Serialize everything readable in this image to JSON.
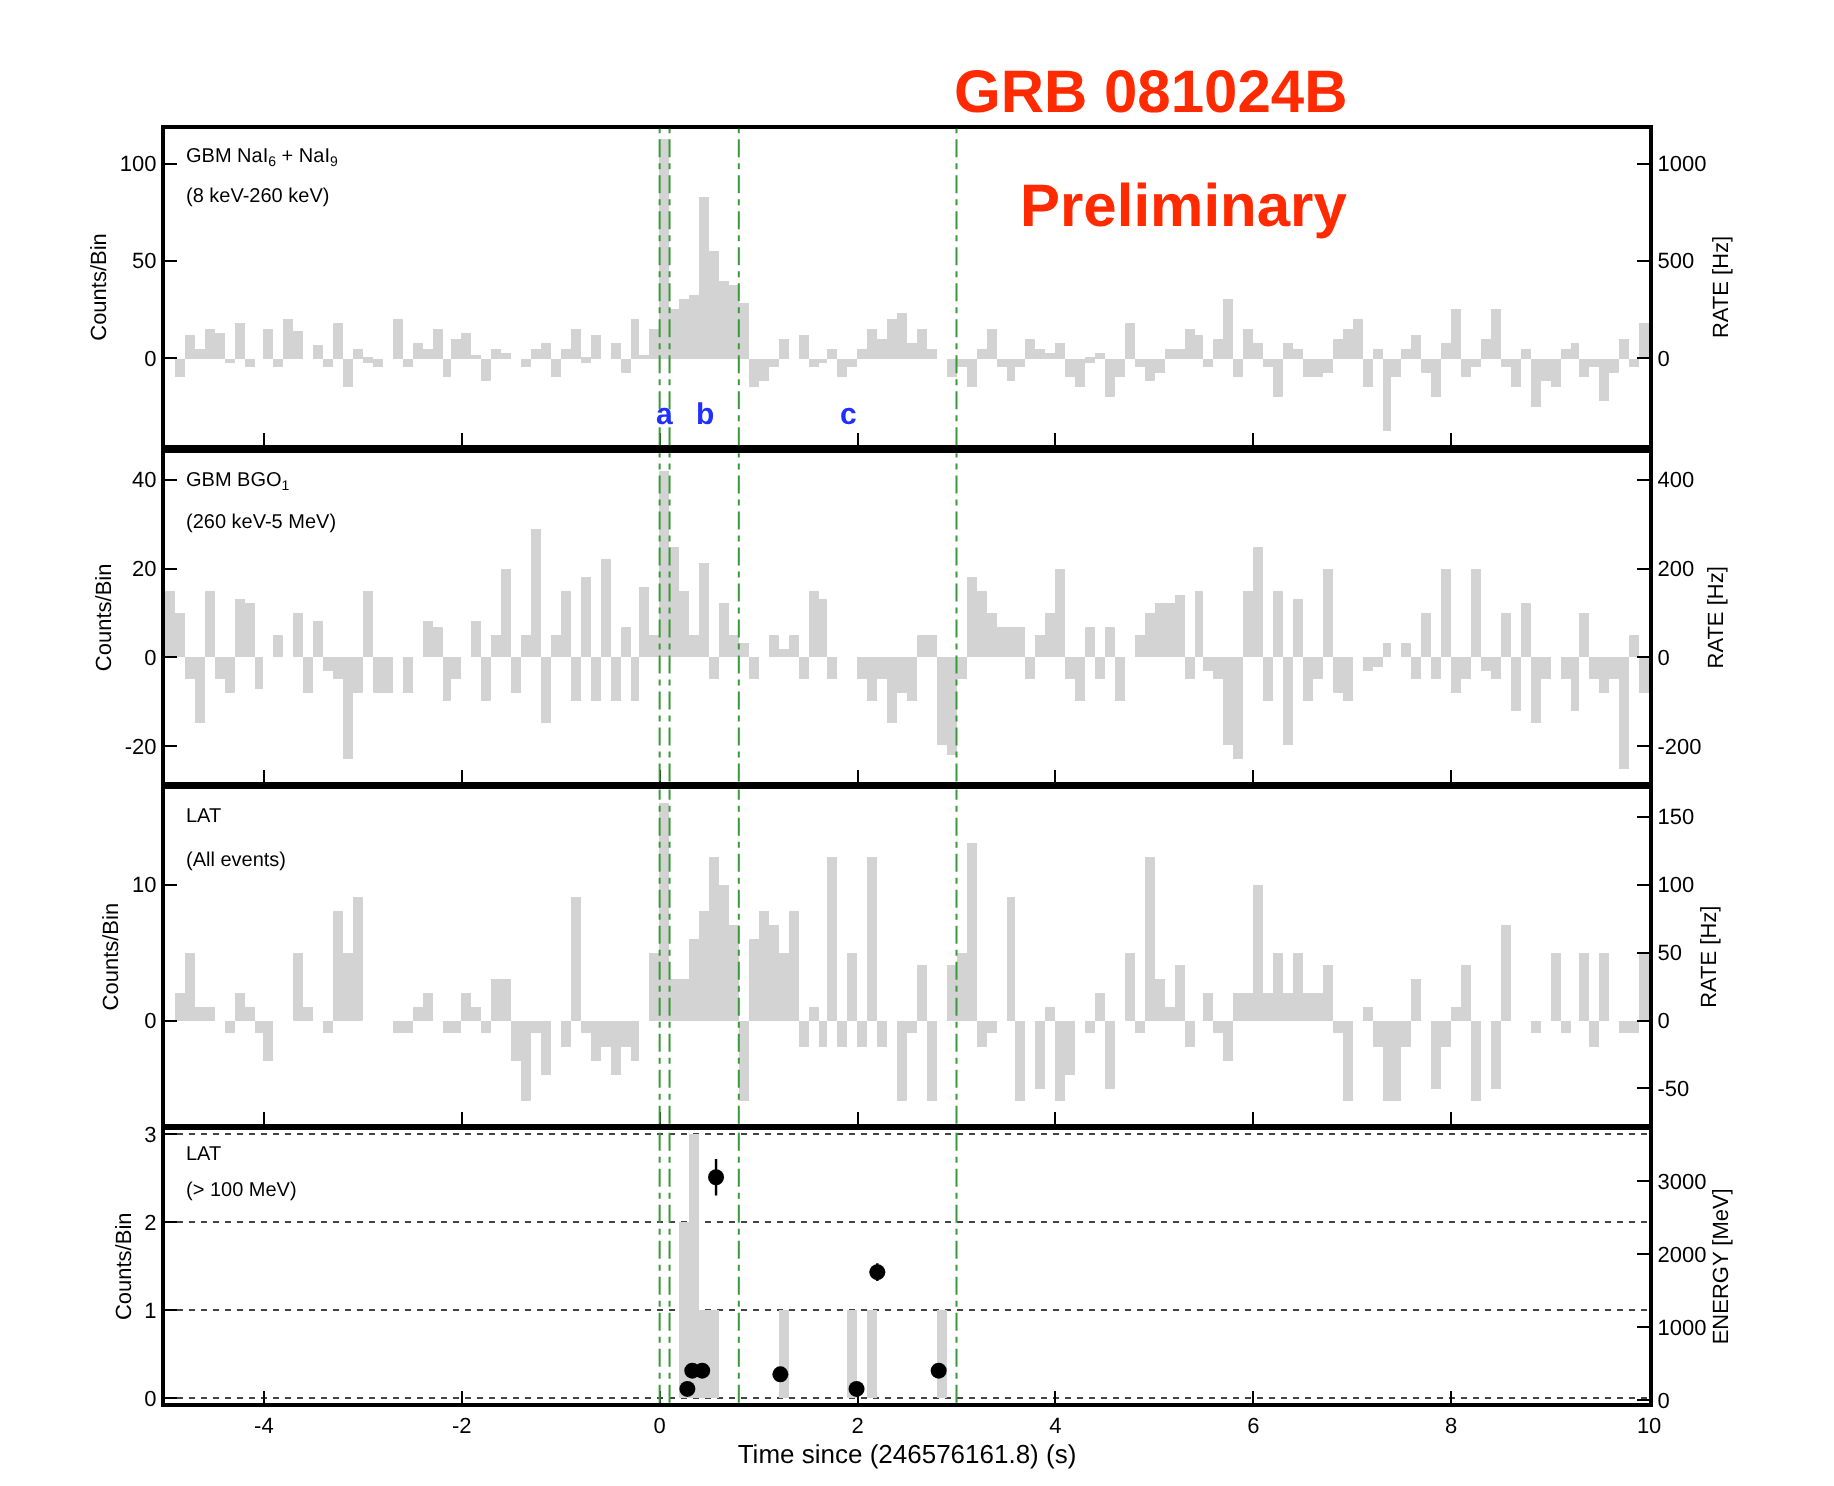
{
  "chart_data": [
    {
      "type": "histogram",
      "title": "GRB 081024B",
      "subtitle": "Preliminary",
      "ylabel": "Counts/Bin",
      "y2label": "RATE [Hz]",
      "color": "#d3d3d3",
      "annotations": [
        "GBM NaI$_{6}$ + NaI$_{9}$",
        "(8 keV-260 keV)",
        "a",
        "b",
        "c"
      ],
      "bins": [
        -5,
        -4.9,
        -4.8,
        -4.7,
        -4.6,
        -4.5,
        -4.4,
        -4.3,
        -4.2,
        -4.1,
        -4,
        -3.9,
        -3.8,
        -3.7,
        -3.6,
        -3.5,
        -3.4,
        -3.3,
        -3.2,
        -3.1,
        -3,
        -2.9,
        -2.8,
        -2.7,
        -2.6,
        -2.5,
        -2.4,
        -2.3,
        -2.2,
        -2.1,
        -2,
        -1.9,
        -1.8,
        -1.7,
        -1.6,
        -1.5,
        -1.4,
        -1.3,
        -1.2,
        -1.1,
        -1,
        -0.9,
        -0.8,
        -0.7,
        -0.6,
        -0.5,
        -0.4,
        -0.3,
        -0.2,
        -0.1,
        0,
        0.1,
        0.2,
        0.3,
        0.4,
        0.5,
        0.6,
        0.7,
        0.8,
        0.9,
        1,
        1.1,
        1.2,
        1.3,
        1.4,
        1.5,
        1.6,
        1.7,
        1.8,
        1.9,
        2,
        2.1,
        2.2,
        2.3,
        2.4,
        2.5,
        2.6,
        2.7,
        2.8,
        2.9,
        3,
        3.1,
        3.2,
        3.3,
        3.4,
        3.5,
        3.6,
        3.7,
        3.8,
        3.9,
        4,
        4.1,
        4.2,
        4.3,
        4.4,
        4.5,
        4.6,
        4.7,
        4.8,
        4.9,
        5,
        5.1,
        5.2,
        5.3,
        5.4,
        5.5,
        5.6,
        5.7,
        5.8,
        5.9,
        6,
        6.1,
        6.2,
        6.3,
        6.4,
        6.5,
        6.6,
        6.7,
        6.8,
        6.9,
        7,
        7.1,
        7.2,
        7.3,
        7.4,
        7.5,
        7.6,
        7.7,
        7.8,
        7.9,
        8,
        8.1,
        8.2,
        8.3,
        8.4,
        8.5,
        8.6,
        8.7,
        8.8,
        8.9,
        9,
        9.1,
        9.2,
        9.3,
        9.4,
        9.5,
        9.6,
        9.7,
        9.8,
        9.9,
        10
      ],
      "values": [
        0,
        -10,
        12,
        5,
        15,
        13,
        -3,
        18,
        -5,
        0,
        15,
        -5,
        20,
        14,
        0,
        7,
        -5,
        18,
        -15,
        5,
        -2,
        -5,
        0,
        20,
        -5,
        8,
        5,
        15,
        -10,
        10,
        13,
        2,
        -12,
        5,
        3,
        0,
        -5,
        5,
        8,
        -10,
        5,
        15,
        -2,
        12,
        0,
        8,
        -8,
        20,
        2,
        15,
        113,
        25,
        30,
        33,
        83,
        55,
        40,
        38,
        28,
        -15,
        -12,
        -5,
        10,
        0,
        12,
        -5,
        -3,
        5,
        -10,
        -5,
        5,
        15,
        10,
        20,
        23,
        8,
        15,
        5,
        0,
        -10,
        -5,
        -15,
        5,
        15,
        -5,
        -12,
        -5,
        10,
        5,
        3,
        8,
        -10,
        -15,
        -2,
        3,
        -20,
        -10,
        18,
        -5,
        -12,
        -8,
        5,
        5,
        15,
        12,
        -5,
        10,
        30,
        -10,
        15,
        8,
        -5,
        -20,
        8,
        5,
        -10,
        -10,
        -8,
        10,
        15,
        20,
        -15,
        5,
        -37,
        -10,
        5,
        12,
        -8,
        -20,
        8,
        25,
        -10,
        -5,
        10,
        25,
        -5,
        -15,
        5,
        -25,
        -12,
        -15,
        5,
        8,
        -10,
        -5,
        -22,
        -8,
        10,
        -5,
        18
      ],
      "xlim": [
        -5,
        10
      ],
      "xticks": [
        -4,
        -2,
        0,
        2,
        4,
        6,
        8,
        10
      ],
      "ylim": [
        -45,
        118
      ],
      "yticks": [
        0,
        50,
        100
      ],
      "y2lim": [
        -450,
        1180
      ],
      "y2ticks": [
        0,
        500,
        1000
      ],
      "tick_labels": "y",
      "ref_lines": [
        {
          "axis": "x",
          "value": 0,
          "color": "#3a9a3a",
          "line_style": "dashed"
        },
        {
          "axis": "x",
          "value": 0.1,
          "color": "#3a9a3a",
          "line_style": "dashed"
        },
        {
          "axis": "x",
          "value": 0.8,
          "color": "#3a9a3a",
          "line_style": "dashed"
        },
        {
          "axis": "x",
          "value": 3.0,
          "color": "#3a9a3a",
          "line_style": "dashed"
        }
      ]
    },
    {
      "type": "histogram",
      "ylabel": "Counts/Bin",
      "y2label": "RATE [Hz]",
      "color": "#d3d3d3",
      "annotations": [
        "GBM BGO$_{1}$",
        "(260 keV-5 MeV)"
      ],
      "bins": [
        -5,
        -4.9,
        -4.8,
        -4.7,
        -4.6,
        -4.5,
        -4.4,
        -4.3,
        -4.2,
        -4.1,
        -4,
        -3.9,
        -3.8,
        -3.7,
        -3.6,
        -3.5,
        -3.4,
        -3.3,
        -3.2,
        -3.1,
        -3,
        -2.9,
        -2.8,
        -2.7,
        -2.6,
        -2.5,
        -2.4,
        -2.3,
        -2.2,
        -2.1,
        -2,
        -1.9,
        -1.8,
        -1.7,
        -1.6,
        -1.5,
        -1.4,
        -1.3,
        -1.2,
        -1.1,
        -1,
        -0.9,
        -0.8,
        -0.7,
        -0.6,
        -0.5,
        -0.4,
        -0.3,
        -0.2,
        -0.1,
        0,
        0.1,
        0.2,
        0.3,
        0.4,
        0.5,
        0.6,
        0.7,
        0.8,
        0.9,
        1,
        1.1,
        1.2,
        1.3,
        1.4,
        1.5,
        1.6,
        1.7,
        1.8,
        1.9,
        2,
        2.1,
        2.2,
        2.3,
        2.4,
        2.5,
        2.6,
        2.7,
        2.8,
        2.9,
        3,
        3.1,
        3.2,
        3.3,
        3.4,
        3.5,
        3.6,
        3.7,
        3.8,
        3.9,
        4,
        4.1,
        4.2,
        4.3,
        4.4,
        4.5,
        4.6,
        4.7,
        4.8,
        4.9,
        5,
        5.1,
        5.2,
        5.3,
        5.4,
        5.5,
        5.6,
        5.7,
        5.8,
        5.9,
        6,
        6.1,
        6.2,
        6.3,
        6.4,
        6.5,
        6.6,
        6.7,
        6.8,
        6.9,
        7,
        7.1,
        7.2,
        7.3,
        7.4,
        7.5,
        7.6,
        7.7,
        7.8,
        7.9,
        8,
        8.1,
        8.2,
        8.3,
        8.4,
        8.5,
        8.6,
        8.7,
        8.8,
        8.9,
        9,
        9.1,
        9.2,
        9.3,
        9.4,
        9.5,
        9.6,
        9.7,
        9.8,
        9.9,
        10
      ],
      "values": [
        15,
        10,
        -5,
        -15,
        15,
        -5,
        -8,
        13,
        12,
        -7,
        0,
        5,
        0,
        10,
        -8,
        8,
        -3,
        -5,
        -23,
        -8,
        15,
        -8,
        -8,
        0,
        -8,
        0,
        8,
        7,
        -10,
        -5,
        0,
        8,
        -10,
        5,
        20,
        -8,
        5,
        29,
        -15,
        5,
        15,
        -10,
        18,
        -10,
        22,
        -10,
        7,
        -10,
        16,
        5,
        42,
        25,
        15,
        5,
        21,
        -5,
        12,
        5,
        3,
        -5,
        0,
        5,
        2,
        5,
        -5,
        15,
        13,
        -5,
        0,
        0,
        -5,
        -10,
        -5,
        -15,
        -8,
        -10,
        5,
        5,
        -20,
        -22,
        -5,
        18,
        15,
        10,
        7,
        7,
        7,
        -5,
        5,
        10,
        20,
        -5,
        -10,
        7,
        -5,
        7,
        -10,
        0,
        5,
        10,
        12,
        12,
        14,
        -5,
        15,
        -3,
        -5,
        -20,
        -23,
        15,
        25,
        -10,
        15,
        -20,
        13,
        -10,
        -5,
        20,
        -8,
        -10,
        0,
        -3,
        -2,
        3,
        0,
        3,
        -5,
        10,
        -5,
        20,
        -8,
        -5,
        20,
        -3,
        -5,
        10,
        -12,
        12,
        -15,
        -5,
        0,
        -5,
        -12,
        10,
        -5,
        -8,
        -5,
        -25,
        5,
        -8
      ],
      "xlim": [
        -5,
        10
      ],
      "xticks": [
        -4,
        -2,
        0,
        2,
        4,
        6,
        8,
        10
      ],
      "ylim": [
        -28,
        46
      ],
      "yticks": [
        -20,
        0,
        20,
        40
      ],
      "y2lim": [
        -280,
        460
      ],
      "y2ticks": [
        -200,
        0,
        200,
        400
      ],
      "tick_labels": "y",
      "ref_lines": [
        {
          "axis": "x",
          "value": 0,
          "color": "#3a9a3a",
          "line_style": "dashed"
        },
        {
          "axis": "x",
          "value": 0.1,
          "color": "#3a9a3a",
          "line_style": "dashed"
        },
        {
          "axis": "x",
          "value": 0.8,
          "color": "#3a9a3a",
          "line_style": "dashed"
        },
        {
          "axis": "x",
          "value": 3.0,
          "color": "#3a9a3a",
          "line_style": "dashed"
        }
      ]
    },
    {
      "type": "histogram",
      "ylabel": "Counts/Bin",
      "y2label": "RATE [Hz]",
      "color": "#d3d3d3",
      "annotations": [
        "LAT",
        "(All events)"
      ],
      "bins": [
        -5,
        -4.9,
        -4.8,
        -4.7,
        -4.6,
        -4.5,
        -4.4,
        -4.3,
        -4.2,
        -4.1,
        -4,
        -3.9,
        -3.8,
        -3.7,
        -3.6,
        -3.5,
        -3.4,
        -3.3,
        -3.2,
        -3.1,
        -3,
        -2.9,
        -2.8,
        -2.7,
        -2.6,
        -2.5,
        -2.4,
        -2.3,
        -2.2,
        -2.1,
        -2,
        -1.9,
        -1.8,
        -1.7,
        -1.6,
        -1.5,
        -1.4,
        -1.3,
        -1.2,
        -1.1,
        -1,
        -0.9,
        -0.8,
        -0.7,
        -0.6,
        -0.5,
        -0.4,
        -0.3,
        -0.2,
        -0.1,
        0,
        0.1,
        0.2,
        0.3,
        0.4,
        0.5,
        0.6,
        0.7,
        0.8,
        0.9,
        1,
        1.1,
        1.2,
        1.3,
        1.4,
        1.5,
        1.6,
        1.7,
        1.8,
        1.9,
        2,
        2.1,
        2.2,
        2.3,
        2.4,
        2.5,
        2.6,
        2.7,
        2.8,
        2.9,
        3,
        3.1,
        3.2,
        3.3,
        3.4,
        3.5,
        3.6,
        3.7,
        3.8,
        3.9,
        4,
        4.1,
        4.2,
        4.3,
        4.4,
        4.5,
        4.6,
        4.7,
        4.8,
        4.9,
        5,
        5.1,
        5.2,
        5.3,
        5.4,
        5.5,
        5.6,
        5.7,
        5.8,
        5.9,
        6,
        6.1,
        6.2,
        6.3,
        6.4,
        6.5,
        6.6,
        6.7,
        6.8,
        6.9,
        7,
        7.1,
        7.2,
        7.3,
        7.4,
        7.5,
        7.6,
        7.7,
        7.8,
        7.9,
        8,
        8.1,
        8.2,
        8.3,
        8.4,
        8.5,
        8.6,
        8.7,
        8.8,
        8.9,
        9,
        9.1,
        9.2,
        9.3,
        9.4,
        9.5,
        9.6,
        9.7,
        9.8,
        9.9,
        10
      ],
      "values": [
        0,
        2,
        5,
        1,
        1,
        0,
        -1,
        2,
        1,
        -1,
        -3,
        0,
        0,
        5,
        1,
        0,
        -1,
        8,
        5,
        9,
        0,
        0,
        0,
        -1,
        -1,
        1,
        2,
        0,
        -1,
        -1,
        2,
        1,
        -1,
        3,
        3,
        -3,
        -6,
        -1,
        -4,
        0,
        -2,
        9,
        -1,
        -3,
        -2,
        -4,
        -2,
        -3,
        0,
        5,
        16,
        3,
        3,
        6,
        8,
        12,
        10,
        7,
        -6,
        6,
        8,
        7,
        5,
        8,
        -2,
        1,
        -2,
        12,
        -2,
        5,
        -2,
        12,
        -2,
        0,
        -6,
        -1,
        4,
        -6,
        0,
        4,
        5,
        13,
        -2,
        -1,
        0,
        9,
        -6,
        0,
        -5,
        1,
        -6,
        -4,
        0,
        -1,
        2,
        -5,
        0,
        5,
        -1,
        12,
        3,
        1,
        4,
        -2,
        0,
        2,
        -1,
        -3,
        2,
        2,
        10,
        2,
        5,
        2,
        5,
        2,
        2,
        4,
        -1,
        -6,
        0,
        1,
        -2,
        -6,
        -6,
        -2,
        3,
        0,
        -5,
        -2,
        1,
        4,
        -6,
        0,
        -5,
        7,
        0,
        0,
        -1,
        0,
        5,
        -1,
        0,
        5,
        -2,
        5,
        0,
        -1,
        -1,
        5
      ],
      "xlim": [
        -5,
        10
      ],
      "xticks": [
        -4,
        -2,
        0,
        2,
        4,
        6,
        8,
        10
      ],
      "ylim": [
        -7.6,
        17
      ],
      "yticks": [
        0,
        10
      ],
      "y2lim": [
        -76,
        170
      ],
      "y2ticks": [
        -50,
        0,
        50,
        100,
        150
      ],
      "tick_labels": "y",
      "ref_lines": [
        {
          "axis": "x",
          "value": 0,
          "color": "#3a9a3a",
          "line_style": "dashed"
        },
        {
          "axis": "x",
          "value": 0.1,
          "color": "#3a9a3a",
          "line_style": "dashed"
        },
        {
          "axis": "x",
          "value": 0.8,
          "color": "#3a9a3a",
          "line_style": "dashed"
        },
        {
          "axis": "x",
          "value": 3.0,
          "color": "#3a9a3a",
          "line_style": "dashed"
        }
      ]
    },
    {
      "type": "histogram",
      "xlabel": "Time since (246576161.8) (s)",
      "ylabel": "Counts/Bin",
      "y2label": "ENERGY [MeV]",
      "grid": "y",
      "marker": "circle",
      "annotations": [
        "LAT",
        "(> 100 MeV)"
      ],
      "bins": [
        -5,
        -4.9,
        -4.8,
        -4.7,
        -4.6,
        -4.5,
        -4.4,
        -4.3,
        -4.2,
        -4.1,
        -4,
        -3.9,
        -3.8,
        -3.7,
        -3.6,
        -3.5,
        -3.4,
        -3.3,
        -3.2,
        -3.1,
        -3,
        -2.9,
        -2.8,
        -2.7,
        -2.6,
        -2.5,
        -2.4,
        -2.3,
        -2.2,
        -2.1,
        -2,
        -1.9,
        -1.8,
        -1.7,
        -1.6,
        -1.5,
        -1.4,
        -1.3,
        -1.2,
        -1.1,
        -1,
        -0.9,
        -0.8,
        -0.7,
        -0.6,
        -0.5,
        -0.4,
        -0.3,
        -0.2,
        -0.1,
        0,
        0.1,
        0.2,
        0.3,
        0.4,
        0.5,
        0.6,
        0.7,
        0.8,
        0.9,
        1,
        1.1,
        1.2,
        1.3,
        1.4,
        1.5,
        1.6,
        1.7,
        1.8,
        1.9,
        2,
        2.1,
        2.2,
        2.3,
        2.4,
        2.5,
        2.6,
        2.7,
        2.8,
        2.9,
        3,
        3.1,
        3.2,
        3.3,
        3.4,
        3.5,
        3.6,
        3.7,
        3.8,
        3.9,
        4,
        4.1,
        4.2,
        4.3,
        4.4,
        4.5,
        4.6,
        4.7,
        4.8,
        4.9,
        5,
        5.1,
        5.2,
        5.3,
        5.4,
        5.5,
        5.6,
        5.7,
        5.8,
        5.9,
        6,
        6.1,
        6.2,
        6.3,
        6.4,
        6.5,
        6.6,
        6.7,
        6.8,
        6.9,
        7,
        7.1,
        7.2,
        7.3,
        7.4,
        7.5,
        7.6,
        7.7,
        7.8,
        7.9,
        8,
        8.1,
        8.2,
        8.3,
        8.4,
        8.5,
        8.6,
        8.7,
        8.8,
        8.9,
        9,
        9.1,
        9.2,
        9.3,
        9.4,
        9.5,
        9.6,
        9.7,
        9.8,
        9.9,
        10
      ],
      "series": [
        {
          "color": "#d3d3d3",
          "values": [
            0,
            0,
            0,
            0,
            0,
            0,
            0,
            0,
            0,
            0,
            0,
            0,
            0,
            0,
            0,
            0,
            0,
            0,
            0,
            0,
            0,
            0,
            0,
            0,
            0,
            0,
            0,
            0,
            0,
            0,
            0,
            0,
            0,
            0,
            0,
            0,
            0,
            0,
            0,
            0,
            0,
            0,
            0,
            0,
            0,
            0,
            0,
            0,
            0,
            0,
            0,
            0,
            2,
            3,
            1,
            1,
            0,
            0,
            0,
            0,
            0,
            0,
            1,
            0,
            0,
            0,
            0,
            0,
            0,
            1,
            0,
            1,
            0,
            0,
            0,
            0,
            0,
            0,
            1,
            0,
            0,
            0,
            0,
            0,
            0,
            0,
            0,
            0,
            0,
            0,
            0,
            0,
            0,
            0,
            0,
            0,
            0,
            0,
            0,
            0,
            0,
            0,
            0,
            0,
            0,
            0,
            0,
            0,
            0,
            0,
            0,
            0,
            0,
            0,
            0,
            0,
            0,
            0,
            0,
            0,
            0,
            0,
            0,
            0,
            0,
            0,
            0,
            0,
            0,
            0,
            0,
            0,
            0,
            0,
            0,
            0,
            0,
            0,
            0,
            0,
            0,
            0,
            0,
            0,
            0,
            0,
            0,
            0,
            0,
            0
          ]
        },
        {
          "type": "scatter",
          "axis": "y2",
          "color": "#000000",
          "x": [
            0.28,
            0.33,
            0.43,
            0.57,
            1.22,
            1.99,
            2.2,
            2.82
          ],
          "values": [
            150,
            400,
            400,
            3050,
            350,
            150,
            1750,
            400
          ],
          "errors": [
            null,
            null,
            null,
            250,
            null,
            null,
            120,
            null
          ]
        }
      ],
      "xlim": [
        -5,
        10
      ],
      "xticks": [
        -4,
        -2,
        0,
        2,
        4,
        6,
        8,
        10
      ],
      "ylim": [
        -0.05,
        3.05
      ],
      "yticks": [
        0,
        1,
        2,
        3
      ],
      "y2lim": [
        -40,
        3700
      ],
      "y2ticks": [
        0,
        1000,
        2000,
        3000
      ],
      "ref_lines": [
        {
          "axis": "x",
          "value": 0,
          "color": "#3a9a3a",
          "line_style": "dashed"
        },
        {
          "axis": "x",
          "value": 0.1,
          "color": "#3a9a3a",
          "line_style": "dashed"
        },
        {
          "axis": "x",
          "value": 0.8,
          "color": "#3a9a3a",
          "line_style": "dashed"
        },
        {
          "axis": "x",
          "value": 3.0,
          "color": "#3a9a3a",
          "line_style": "dashed"
        }
      ]
    }
  ]
}
